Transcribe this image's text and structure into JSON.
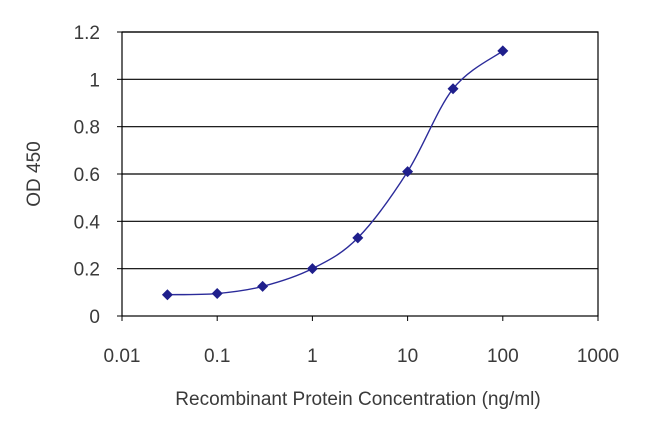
{
  "chart_data": {
    "type": "line",
    "title": "",
    "xlabel": "Recombinant Protein Concentration (ng/ml)",
    "ylabel": "OD 450",
    "xscale": "log",
    "xlim": [
      0.01,
      1000
    ],
    "ylim": [
      0,
      1.2
    ],
    "grid": "horizontal",
    "legend": "none",
    "x_ticks": [
      "0.01",
      "0.1",
      "1",
      "10",
      "100",
      "1000"
    ],
    "y_ticks": [
      "0",
      "0.2",
      "0.4",
      "0.6",
      "0.8",
      "1",
      "1.2"
    ],
    "series": [
      {
        "marker": "diamond",
        "color": "#1f1f8c",
        "x": [
          0.03,
          0.1,
          0.3,
          1,
          3,
          10,
          30,
          100
        ],
        "y": [
          0.09,
          0.095,
          0.125,
          0.2,
          0.33,
          0.61,
          0.96,
          1.12
        ]
      }
    ]
  }
}
